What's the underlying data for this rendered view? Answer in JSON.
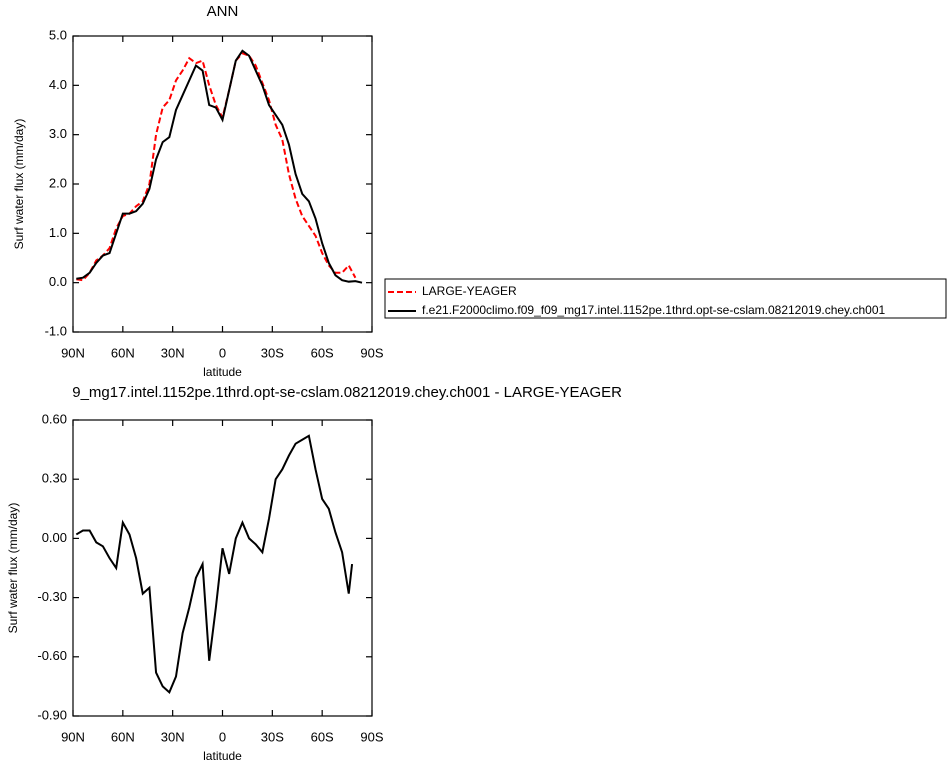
{
  "chart_data": [
    {
      "type": "line",
      "title": "ANN",
      "xlabel": "latitude",
      "ylabel": "Surf water flux (mm/day)",
      "x": [
        88,
        84,
        80,
        76,
        72,
        68,
        64,
        60,
        56,
        52,
        48,
        44,
        40,
        36,
        32,
        28,
        24,
        20,
        16,
        12,
        8,
        4,
        0,
        -4,
        -8,
        -12,
        -16,
        -20,
        -24,
        -28,
        -32,
        -36,
        -40,
        -44,
        -48,
        -52,
        -56,
        -60,
        -64,
        -68,
        -72,
        -76,
        -80,
        -84
      ],
      "series": [
        {
          "name": "LARGE-YEAGER",
          "color": "#ff0000",
          "style": "dashed",
          "values": [
            0.07,
            0.05,
            0.2,
            0.45,
            0.55,
            0.7,
            1.1,
            1.35,
            1.4,
            1.55,
            1.65,
            2.0,
            3.0,
            3.55,
            3.7,
            4.1,
            4.3,
            4.55,
            4.45,
            4.5,
            4.0,
            3.6,
            3.35,
            3.9,
            4.5,
            4.65,
            4.6,
            4.4,
            4.05,
            3.7,
            3.2,
            2.9,
            2.2,
            1.7,
            1.35,
            1.15,
            0.95,
            0.6,
            0.35,
            0.2,
            0.2,
            0.35,
            0.1,
            null
          ]
        },
        {
          "name": "f.e21.F2000climo.f09_f09_mg17.intel.1152pe.1thrd.opt-se-cslam.08212019.chey.ch001",
          "color": "#000000",
          "style": "solid",
          "values": [
            0.08,
            0.1,
            0.2,
            0.4,
            0.55,
            0.6,
            1.0,
            1.4,
            1.4,
            1.45,
            1.6,
            1.9,
            2.5,
            2.85,
            2.95,
            3.5,
            3.8,
            4.1,
            4.4,
            4.3,
            3.6,
            3.55,
            3.3,
            3.9,
            4.5,
            4.7,
            4.6,
            4.3,
            4.0,
            3.6,
            3.4,
            3.2,
            2.8,
            2.2,
            1.8,
            1.65,
            1.3,
            0.8,
            0.4,
            0.15,
            0.05,
            0.02,
            0.03,
            0.0
          ]
        }
      ],
      "xlim": [
        90,
        -90
      ],
      "xticks": [
        {
          "value": 90,
          "label": "90N"
        },
        {
          "value": 60,
          "label": "60N"
        },
        {
          "value": 30,
          "label": "30N"
        },
        0,
        {
          "value": -30,
          "label": "30S"
        },
        {
          "value": -60,
          "label": "60S"
        },
        {
          "value": -90,
          "label": "90S"
        }
      ],
      "ylim": [
        -1,
        5
      ],
      "yticks": [
        {
          "value": 5,
          "label": "5.0"
        },
        {
          "value": 4,
          "label": "4.0"
        },
        {
          "value": 3,
          "label": "3.0"
        },
        {
          "value": 2,
          "label": "2.0"
        },
        {
          "value": 1,
          "label": "1.0"
        },
        {
          "value": 0,
          "label": "0.0"
        },
        {
          "value": -1,
          "label": "-1.0"
        }
      ],
      "legend": "right"
    },
    {
      "type": "line",
      "title": "9_mg17.intel.1152pe.1thrd.opt-se-cslam.08212019.chey.ch001 - LARGE-YEAGER",
      "xlabel": "latitude",
      "ylabel": "Surf water flux (mm/day)",
      "x": [
        88,
        84,
        80,
        76,
        72,
        68,
        64,
        60,
        56,
        52,
        48,
        44,
        40,
        36,
        32,
        28,
        24,
        20,
        16,
        12,
        8,
        4,
        0,
        -4,
        -8,
        -12,
        -16,
        -20,
        -24,
        -28,
        -32,
        -36,
        -40,
        -44,
        -48,
        -52,
        -56,
        -60,
        -64,
        -68,
        -72,
        -76,
        -78
      ],
      "series": [
        {
          "color": "#000000",
          "style": "solid",
          "values": [
            0.02,
            0.04,
            0.04,
            -0.02,
            -0.04,
            -0.1,
            -0.15,
            0.08,
            0.02,
            -0.1,
            -0.28,
            -0.25,
            -0.68,
            -0.75,
            -0.78,
            -0.7,
            -0.48,
            -0.35,
            -0.2,
            -0.13,
            -0.62,
            -0.35,
            -0.05,
            -0.18,
            0.0,
            0.08,
            0.0,
            -0.03,
            -0.07,
            0.1,
            0.3,
            0.35,
            0.42,
            0.48,
            0.5,
            0.52,
            0.35,
            0.2,
            0.15,
            0.03,
            -0.07,
            -0.28,
            -0.13
          ]
        }
      ],
      "xlim": [
        90,
        -90
      ],
      "xticks": [
        {
          "value": 90,
          "label": "90N"
        },
        {
          "value": 60,
          "label": "60N"
        },
        {
          "value": 30,
          "label": "30N"
        },
        0,
        {
          "value": -30,
          "label": "30S"
        },
        {
          "value": -60,
          "label": "60S"
        },
        {
          "value": -90,
          "label": "90S"
        }
      ],
      "ylim": [
        -0.9,
        0.6
      ],
      "yticks": [
        {
          "value": 0.6,
          "label": "0.60"
        },
        {
          "value": 0.3,
          "label": "0.30"
        },
        {
          "value": 0,
          "label": "0.00"
        },
        {
          "value": -0.3,
          "label": "-0.30"
        },
        {
          "value": -0.6,
          "label": "-0.60"
        },
        {
          "value": -0.9,
          "label": "-0.90"
        }
      ]
    }
  ]
}
